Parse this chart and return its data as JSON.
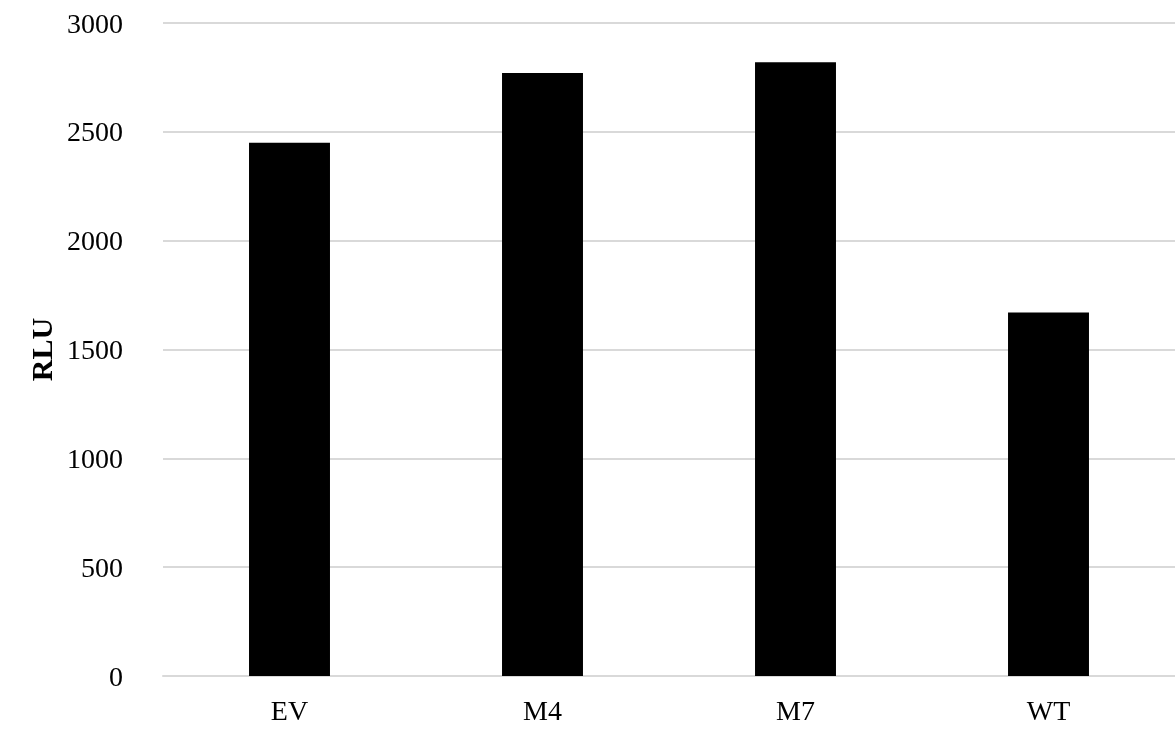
{
  "chart_data": {
    "type": "bar",
    "ylabel": "RLU",
    "categories": [
      "EV",
      "M4",
      "M7",
      "WT"
    ],
    "values": [
      2450,
      2770,
      2820,
      1670
    ],
    "color": "#000000",
    "ylim": [
      0,
      3000
    ],
    "yticks": [
      0,
      500,
      1000,
      1500,
      2000,
      2500,
      3000
    ],
    "grid": "y"
  }
}
